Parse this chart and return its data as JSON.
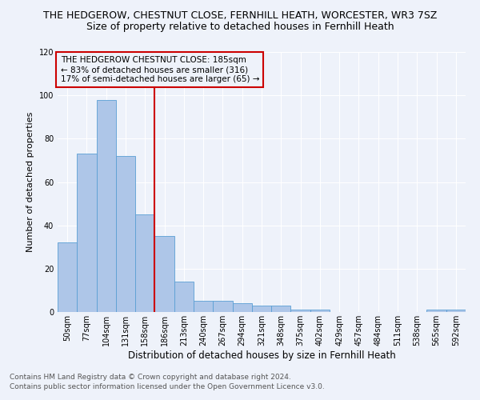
{
  "title": "THE HEDGEROW, CHESTNUT CLOSE, FERNHILL HEATH, WORCESTER, WR3 7SZ",
  "subtitle": "Size of property relative to detached houses in Fernhill Heath",
  "xlabel": "Distribution of detached houses by size in Fernhill Heath",
  "ylabel": "Number of detached properties",
  "categories": [
    "50sqm",
    "77sqm",
    "104sqm",
    "131sqm",
    "158sqm",
    "186sqm",
    "213sqm",
    "240sqm",
    "267sqm",
    "294sqm",
    "321sqm",
    "348sqm",
    "375sqm",
    "402sqm",
    "429sqm",
    "457sqm",
    "484sqm",
    "511sqm",
    "538sqm",
    "565sqm",
    "592sqm"
  ],
  "values": [
    32,
    73,
    98,
    72,
    45,
    35,
    14,
    5,
    5,
    4,
    3,
    3,
    1,
    1,
    0,
    0,
    0,
    0,
    0,
    1,
    1
  ],
  "bar_color": "#aec6e8",
  "bar_edge_color": "#5a9fd4",
  "vline_index": 5,
  "vline_color": "#cc0000",
  "annotation_lines": [
    "THE HEDGEROW CHESTNUT CLOSE: 185sqm",
    "← 83% of detached houses are smaller (316)",
    "17% of semi-detached houses are larger (65) →"
  ],
  "annotation_box_edge": "#cc0000",
  "ylim": [
    0,
    120
  ],
  "yticks": [
    0,
    20,
    40,
    60,
    80,
    100,
    120
  ],
  "footer_line1": "Contains HM Land Registry data © Crown copyright and database right 2024.",
  "footer_line2": "Contains public sector information licensed under the Open Government Licence v3.0.",
  "bg_color": "#eef2fa",
  "grid_color": "#ffffff",
  "title_fontsize": 9,
  "subtitle_fontsize": 9,
  "ylabel_fontsize": 8,
  "xlabel_fontsize": 8.5,
  "tick_fontsize": 7,
  "footer_fontsize": 6.5,
  "ann_fontsize": 7.5
}
